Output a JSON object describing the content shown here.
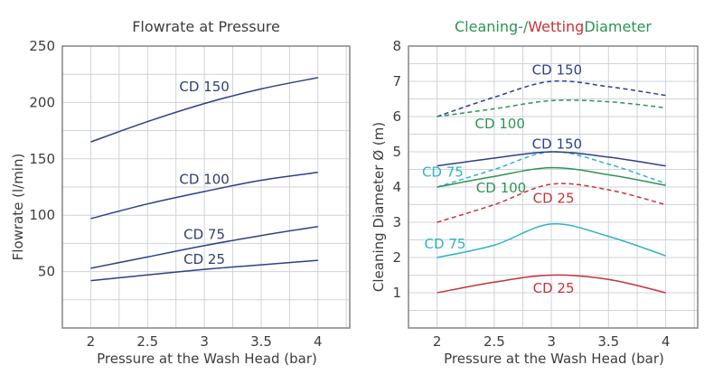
{
  "style": {
    "background": "#ffffff",
    "grid_color": "#cfd3da",
    "border_color": "#8c8c8c",
    "tick_color": "#3d3d3d",
    "navy": "#2e3f8a",
    "green": "#2e9255",
    "red": "#c63338",
    "cyan": "#2fb3c6"
  },
  "chart_data": [
    {
      "type": "line",
      "title": "Flowrate at Pressure",
      "xlabel": "Pressure at the Wash Head (bar)",
      "ylabel": "Flowrate (l/min)",
      "x": [
        2,
        2.5,
        3,
        3.5,
        4
      ],
      "x_ticks": [
        2,
        2.5,
        3,
        3.5,
        4
      ],
      "y_ticks": [
        50,
        100,
        150,
        200,
        250
      ],
      "xlim": [
        1.75,
        4.28
      ],
      "ylim": [
        0,
        250
      ],
      "x_grid_step": 0.25,
      "y_grid_step": 25,
      "grid": true,
      "legend_position": "inline-labels",
      "series": [
        {
          "name": "CD 150",
          "values": [
            165,
            183,
            199,
            212,
            222
          ],
          "color": "#2e3f8a",
          "dash": false
        },
        {
          "name": "CD 100",
          "values": [
            97,
            110,
            121,
            131,
            138
          ],
          "color": "#2e3f8a",
          "dash": false
        },
        {
          "name": "CD 75",
          "values": [
            53,
            63,
            73,
            82,
            90
          ],
          "color": "#2e3f8a",
          "dash": false
        },
        {
          "name": "CD 25",
          "values": [
            42,
            47,
            52,
            56,
            60
          ],
          "color": "#2e3f8a",
          "dash": false
        }
      ],
      "labels": [
        {
          "text": "CD 150",
          "x": 3.0,
          "y": 214,
          "color": "#303e6e"
        },
        {
          "text": "CD 100",
          "x": 3.0,
          "y": 132,
          "color": "#303e6e"
        },
        {
          "text": "CD 75",
          "x": 3.0,
          "y": 83,
          "color": "#303e6e"
        },
        {
          "text": "CD 25",
          "x": 3.0,
          "y": 61,
          "color": "#303e6e"
        }
      ]
    },
    {
      "type": "line",
      "title_parts": [
        {
          "text": "Cleaning-/",
          "color": "#2e9255"
        },
        {
          "text": "Wetting",
          "color": "#c63338"
        },
        {
          "text": "Diameter",
          "color": "#2e9255"
        }
      ],
      "xlabel": "Pressure at the Wash Head (bar)",
      "ylabel": "Cleaning Diameter Ø (m)",
      "x": [
        2,
        2.5,
        3,
        3.5,
        4
      ],
      "x_ticks": [
        2,
        2.5,
        3,
        3.5,
        4
      ],
      "y_ticks": [
        1,
        2,
        3,
        4,
        5,
        6,
        7,
        8
      ],
      "xlim": [
        1.75,
        4.28
      ],
      "ylim": [
        0,
        8
      ],
      "x_grid_step": 0.25,
      "y_grid_step": 0.5,
      "grid": true,
      "legend_position": "inline-labels",
      "series": [
        {
          "name": "CD 150 wetting diameter",
          "values": [
            6.0,
            6.55,
            7.0,
            6.85,
            6.6
          ],
          "color": "#2e3f8a",
          "dash": true
        },
        {
          "name": "CD 100 wetting diameter",
          "values": [
            6.0,
            6.22,
            6.45,
            6.42,
            6.25
          ],
          "color": "#2e9255",
          "dash": true
        },
        {
          "name": "CD 75 wetting diameter",
          "values": [
            4.0,
            4.5,
            5.0,
            4.65,
            4.1
          ],
          "color": "#2fb3c6",
          "dash": true
        },
        {
          "name": "CD 25 wetting diameter",
          "values": [
            3.0,
            3.5,
            4.08,
            3.92,
            3.5
          ],
          "color": "#c63338",
          "dash": true
        },
        {
          "name": "CD 150 cleaning diameter",
          "values": [
            4.6,
            4.82,
            5.0,
            4.85,
            4.6
          ],
          "color": "#2e3f8a",
          "dash": false
        },
        {
          "name": "CD 100 cleaning diameter",
          "values": [
            4.0,
            4.3,
            4.55,
            4.35,
            4.05
          ],
          "color": "#2e9255",
          "dash": false
        },
        {
          "name": "CD 75 cleaning diameter",
          "values": [
            2.0,
            2.35,
            2.95,
            2.6,
            2.05
          ],
          "color": "#2fb3c6",
          "dash": false
        },
        {
          "name": "CD 25 cleaning diameter",
          "values": [
            1.0,
            1.3,
            1.5,
            1.38,
            1.0
          ],
          "color": "#c63338",
          "dash": false
        }
      ],
      "labels": [
        {
          "text": "CD 150",
          "x": 3.05,
          "y": 7.32,
          "color": "#2e3f8a"
        },
        {
          "text": "CD 100",
          "x": 2.55,
          "y": 5.8,
          "color": "#2e9255"
        },
        {
          "text": "CD 150",
          "x": 3.05,
          "y": 5.22,
          "color": "#2e3f8a"
        },
        {
          "text": "CD 75",
          "x": 2.05,
          "y": 4.42,
          "color": "#2fb3c6"
        },
        {
          "text": "CD 100",
          "x": 2.56,
          "y": 3.97,
          "color": "#2e9255"
        },
        {
          "text": "CD 25",
          "x": 3.02,
          "y": 3.68,
          "color": "#c63338"
        },
        {
          "text": "CD 75",
          "x": 2.07,
          "y": 2.38,
          "color": "#2fb3c6"
        },
        {
          "text": "CD 25",
          "x": 3.02,
          "y": 1.13,
          "color": "#c63338"
        }
      ]
    }
  ]
}
